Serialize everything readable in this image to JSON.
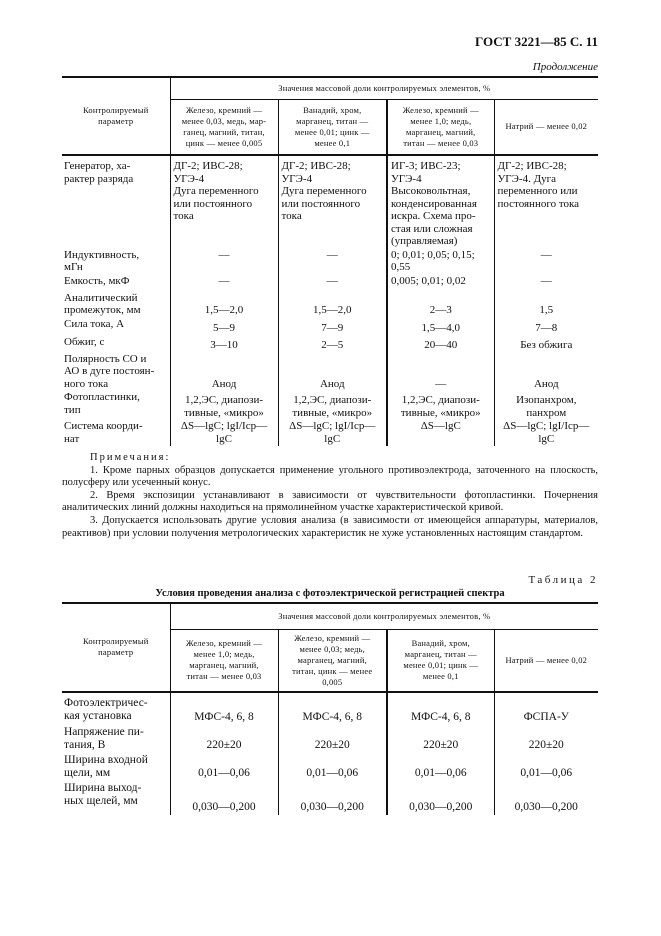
{
  "header": {
    "title": "ГОСТ 3221—85 С. 11"
  },
  "table1": {
    "continuation": "Продолжение",
    "param_header": "Контролируемый\nпараметр",
    "group_header": "Значения массовой доли контролируемых элементов, %",
    "columns": [
      "Железо, кремний —\nменее 0,03, медь, мар-\nганец, магний, титан,\nцинк — менее 0,005",
      "Ванадий, хром,\nмарганец, титан —\nменее 0,01; цинк —\nменее 0,1",
      "Железо, кремний —\nменее 1,0; медь,\nмарганец, магний,\nтитан — менее 0,03",
      "Натрий — менее 0,02"
    ],
    "rows": [
      {
        "param": "Генератор,        ха-\nрактер разряда",
        "values": [
          "ДГ-2; ИВС-28;\nУГЭ-4\nДуга переменного\nили постоянного\nтока",
          "ДГ-2; ИВС-28;\nУГЭ-4\nДуга переменного\nили постоянного\nтока",
          "ИГ-3; ИВС-23;\nУГЭ-4\nВысоковольтная,\nконденсированная\nискра. Схема про-\nстая или сложная\n(управляемая)",
          "ДГ-2; ИВС-28;\nУГЭ-4.             Дуга\nпеременного       или\nпостоянного тока"
        ]
      },
      {
        "param": "Индуктивность,\nмГн",
        "values": [
          "—",
          "—",
          "0; 0,01; 0,05; 0,15;\n0,55",
          "—"
        ]
      },
      {
        "param": "Емкость, мкФ",
        "values": [
          "—",
          "—",
          "0,005; 0,01; 0,02",
          "—"
        ]
      },
      {
        "param": "Аналитический\nпромежуток, мм",
        "values": [
          "1,5—2,0",
          "1,5—2,0",
          "2—3",
          "1,5"
        ]
      },
      {
        "param": "Сила тока, А",
        "values": [
          "5—9",
          "7—9",
          "1,5—4,0",
          "7—8"
        ]
      },
      {
        "param": "Обжиг, с",
        "values": [
          "3—10",
          "2—5",
          "20—40",
          "Без обжига"
        ]
      },
      {
        "param": "Полярность СО и\nАО в дуге постоян-\nного тока",
        "values": [
          "Анод",
          "Анод",
          "—",
          "Анод"
        ]
      },
      {
        "param": "Фотопластинки,\nтип",
        "values": [
          "1,2,ЭС, диапози-\nтивные, «микро»",
          "1,2,ЭС, диапози-\nтивные, «микро»",
          "1,2,ЭС, диапози-\nтивные, «микро»",
          "Изопанхром,\nпанхром"
        ]
      },
      {
        "param": "Система коорди-\nнат",
        "values": [
          "ΔS—lgC; lgI/Iср—lgC",
          "ΔS—lgC; lgI/Iср—lgC",
          "ΔS—lgC",
          "ΔS—lgC; lgI/Iср—lgC"
        ]
      }
    ]
  },
  "notes": {
    "title": "Примечания:",
    "items": [
      "1. Кроме парных образцов допускается применение угольного противоэлектрода, заточенного на плоскость, полусферу или усеченный конус.",
      "2. Время экспозиции устанавливают в зависимости от чувствительности фотопластинки. Почернения аналитических линий должны находиться на прямолинейном участке характеристической кривой.",
      "3. Допускается использовать другие условия анализа (в зависимости от имеющейся аппаратуры, материалов, реактивов) при условии получения метрологических характеристик не хуже установленных настоящим стандартом."
    ]
  },
  "table2": {
    "number": "Таблица 2",
    "title": "Условия проведения анализа с фотоэлектрической регистрацией спектра",
    "param_header": "Контролируемый\nпараметр",
    "group_header": "Значения массовой доли контролируемых элементов, %",
    "columns": [
      "Железо, кремний —\nменее 1,0; медь,\nмарганец, магний,\nтитан — менее 0,03",
      "Железо, кремний —\nменее 0,03; медь,\nмарганец, магний,\nтитан, цинк — менее\n0,005",
      "Ванадий, хром,\nмарганец, титан —\nменее 0,01; цинк —\nменее 0,1",
      "Натрий — менее 0,02"
    ],
    "rows": [
      {
        "param": "Фотоэлектричес-\nкая установка",
        "values": [
          "МФС-4, 6, 8",
          "МФС-4, 6, 8",
          "МФС-4, 6, 8",
          "ФСПА-У"
        ]
      },
      {
        "param": "Напряжение пи-\nтания, В",
        "values": [
          "220±20",
          "220±20",
          "220±20",
          "220±20"
        ]
      },
      {
        "param": "Ширина входной\nщели, мм",
        "values": [
          "0,01—0,06",
          "0,01—0,06",
          "0,01—0,06",
          "0,01—0,06"
        ]
      },
      {
        "param": "Ширина выход-\nных щелей, мм",
        "values": [
          "0,030—0,200",
          "0,030—0,200",
          "0,030—0,200",
          "0,030—0,200"
        ]
      }
    ]
  }
}
